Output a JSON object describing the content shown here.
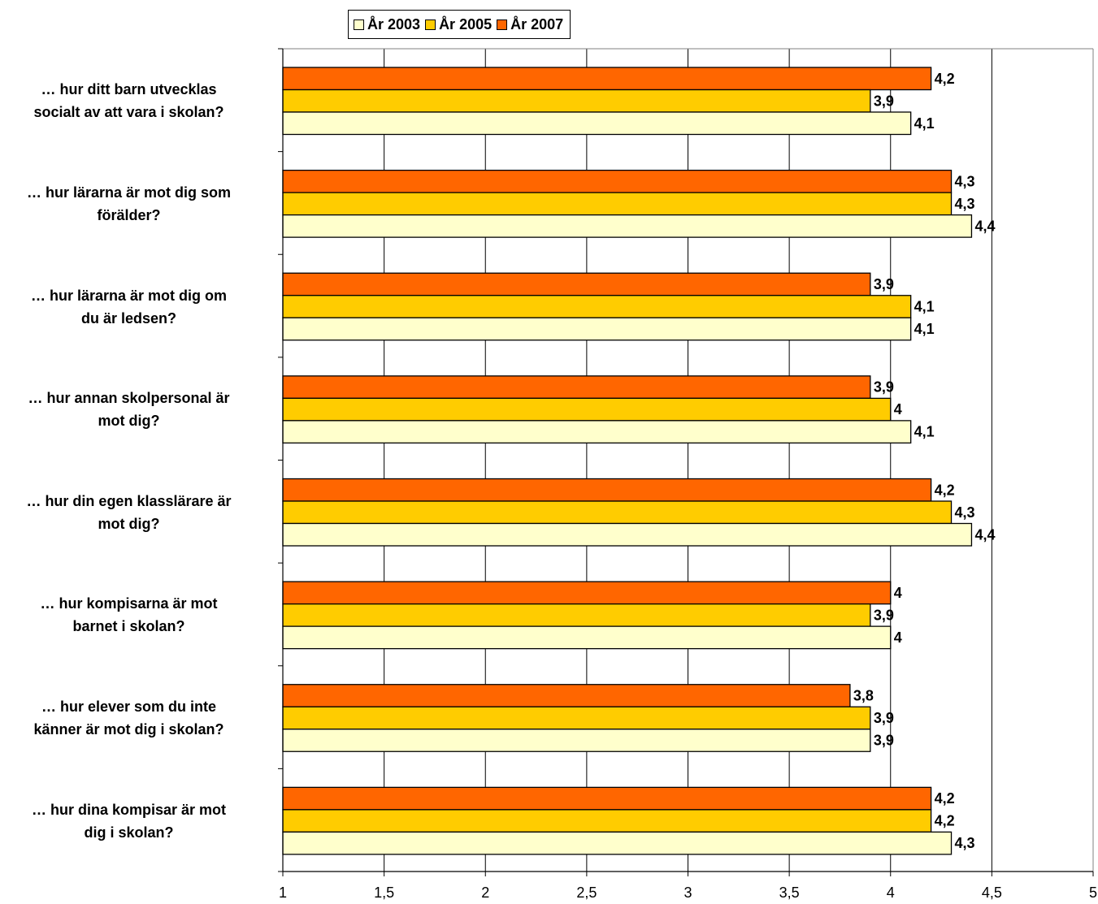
{
  "chart_data": {
    "type": "bar",
    "orientation": "horizontal",
    "categories": [
      "… hur ditt barn utvecklas socialt av att vara i skolan?",
      "… hur lärarna är mot dig som förälder?",
      "… hur lärarna är mot dig om du är ledsen?",
      "… hur annan skolpersonal är mot dig?",
      "… hur din egen klasslärare är mot dig?",
      "… hur kompisarna är mot barnet i skolan?",
      "… hur elever som du inte känner är mot dig i skolan?",
      "… hur dina kompisar är mot dig i skolan?"
    ],
    "category_lines": [
      [
        "… hur ditt barn utvecklas",
        "socialt av att vara i skolan?"
      ],
      [
        "… hur lärarna är mot dig som",
        "förälder?"
      ],
      [
        "… hur lärarna är mot dig om",
        "du är ledsen?"
      ],
      [
        "… hur annan skolpersonal är",
        "mot dig?"
      ],
      [
        "… hur din egen klasslärare är",
        "mot dig?"
      ],
      [
        "… hur kompisarna är mot",
        "barnet i skolan?"
      ],
      [
        "… hur elever som du inte",
        "känner är mot dig i skolan?"
      ],
      [
        "… hur dina kompisar är mot",
        "dig i skolan?"
      ]
    ],
    "series": [
      {
        "name": "År 2007",
        "color": "#ff6600",
        "values": [
          4.2,
          4.3,
          3.9,
          3.9,
          4.2,
          4.0,
          3.8,
          4.2
        ],
        "labels": [
          "4,2",
          "4,3",
          "3,9",
          "3,9",
          "4,2",
          "4",
          "3,8",
          "4,2"
        ]
      },
      {
        "name": "År 2005",
        "color": "#ffcc00",
        "values": [
          3.9,
          4.3,
          4.1,
          4.0,
          4.3,
          3.9,
          3.9,
          4.2
        ],
        "labels": [
          "3,9",
          "4,3",
          "4,1",
          "4",
          "4,3",
          "3,9",
          "3,9",
          "4,2"
        ]
      },
      {
        "name": "År 2003",
        "color": "#ffffcc",
        "values": [
          4.1,
          4.4,
          4.1,
          4.1,
          4.4,
          4.0,
          3.9,
          4.3
        ],
        "labels": [
          "4,1",
          "4,4",
          "4,1",
          "4,1",
          "4,4",
          "4",
          "3,9",
          "4,3"
        ]
      }
    ],
    "legend_order": [
      "År 2003",
      "År 2005",
      "År 2007"
    ],
    "xlim": [
      1,
      5
    ],
    "xticks": [
      1,
      1.5,
      2,
      2.5,
      3,
      3.5,
      4,
      4.5,
      5
    ],
    "xtick_labels": [
      "1",
      "1,5",
      "2",
      "2,5",
      "3",
      "3,5",
      "4",
      "4,5",
      "5"
    ],
    "grid": true,
    "legend_position": "top"
  }
}
